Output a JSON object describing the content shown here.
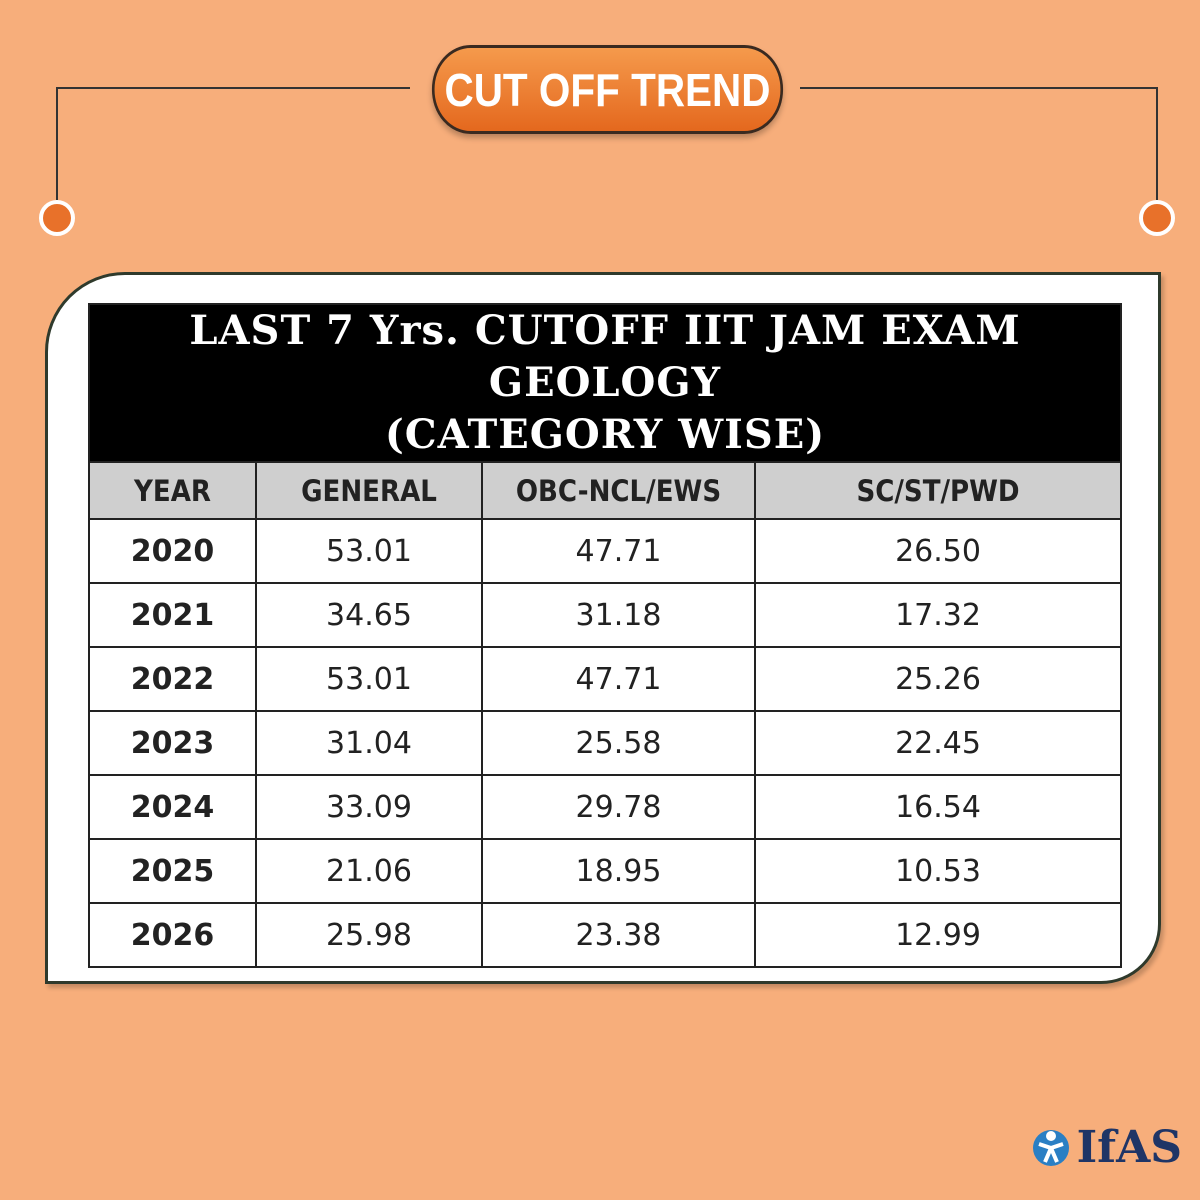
{
  "header": {
    "badge": "CUT OFF TREND"
  },
  "table": {
    "title": [
      "LAST 7 Yrs. CUTOFF IIT JAM EXAM GEOLOGY",
      "(CATEGORY WISE)"
    ],
    "columns": [
      "YEAR",
      "GENERAL",
      "OBC-NCL/EWS",
      "SC/ST/PWD"
    ],
    "rows": [
      [
        "2020",
        "53.01",
        "47.71",
        "26.50"
      ],
      [
        "2021",
        "34.65",
        "31.18",
        "17.32"
      ],
      [
        "2022",
        "53.01",
        "47.71",
        "25.26"
      ],
      [
        "2023",
        "31.04",
        "25.58",
        "22.45"
      ],
      [
        "2024",
        "33.09",
        "29.78",
        "16.54"
      ],
      [
        "2025",
        "21.06",
        "18.95",
        "10.53"
      ],
      [
        "2026",
        "25.98",
        "23.38",
        "12.99"
      ]
    ]
  },
  "logo": {
    "text": "IfAS"
  }
}
